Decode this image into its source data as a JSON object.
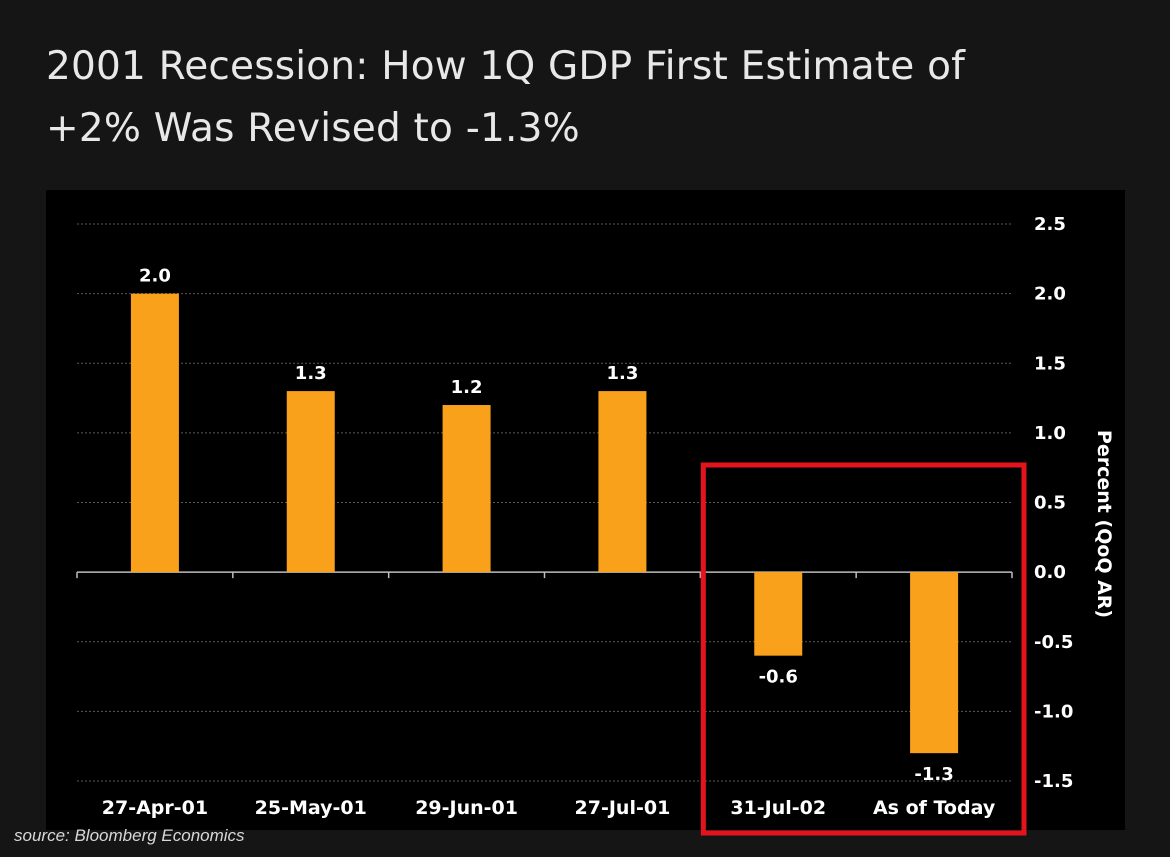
{
  "title_lines": [
    "2001 Recession: How 1Q GDP First Estimate of",
    "+2% Was Revised to -1.3%"
  ],
  "source": "source: Bloomberg Economics",
  "colors": {
    "page_background": "#151515",
    "plot_background": "#000000",
    "bar": "#f9a11b",
    "text": "#ffffff",
    "gridline": "#5a5a5a",
    "highlight_box": "#e3141d"
  },
  "chart_data": {
    "type": "bar",
    "title": "2001 Recession: How 1Q GDP First Estimate of +2% Was Revised to -1.3%",
    "xlabel": "",
    "ylabel": "Percent (QoQ AR)",
    "categories": [
      "27-Apr-01",
      "25-May-01",
      "29-Jun-01",
      "27-Jul-01",
      "31-Jul-02",
      "As of Today"
    ],
    "values": [
      2.0,
      1.3,
      1.2,
      1.3,
      -0.6,
      -1.3
    ],
    "data_labels": [
      "2.0",
      "1.3",
      "1.2",
      "1.3",
      "-0.6",
      "-1.3"
    ],
    "ylim": [
      -1.5,
      2.5
    ],
    "yticks": [
      2.5,
      2.0,
      1.5,
      1.0,
      0.5,
      0.0,
      -0.5,
      -1.0,
      -1.5
    ],
    "ytick_labels": [
      "2.5",
      "2.0",
      "1.5",
      "1.0",
      "0.5",
      "0.0",
      "-0.5",
      "-1.0",
      "-1.5"
    ],
    "y_axis_side": "right",
    "grid": true,
    "grid_style": "dashed",
    "highlighted_categories": [
      "31-Jul-02",
      "As of Today"
    ],
    "source": "source: Bloomberg Economics"
  }
}
